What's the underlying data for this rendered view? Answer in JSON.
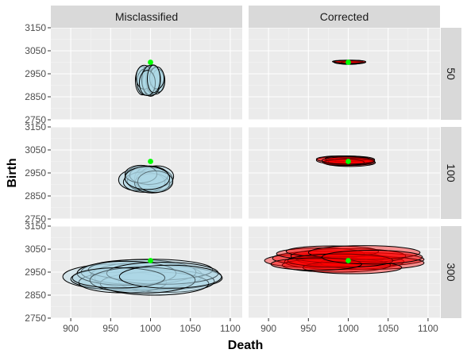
{
  "chart_data": {
    "type": "scatter",
    "subtype": "faceted-ellipse-plot",
    "xlabel": "Death",
    "ylabel": "Birth",
    "xlim": [
      875,
      1115
    ],
    "ylim": [
      2750,
      3150
    ],
    "x_ticks": [
      900,
      950,
      1000,
      1050,
      1100
    ],
    "y_ticks": [
      2750,
      2850,
      2950,
      3050,
      3150
    ],
    "column_strips": [
      "Misclassified",
      "Corrected"
    ],
    "row_strips": [
      "50",
      "100",
      "300"
    ],
    "grid": true,
    "legend": "none",
    "true_value": {
      "x": 1000,
      "y": 3000
    },
    "colors": {
      "panel_bg": "#ebebeb",
      "grid_major": "#ffffff",
      "strip_bg": "#d9d9d9",
      "misclassified_fill": "#add8e6",
      "corrected_fill": "#ff0000",
      "point": "#00ff00",
      "outline": "#000000"
    },
    "panels": [
      {
        "column": "Misclassified",
        "row": "50",
        "fill_opacity": 0.55,
        "ellipses": [
          {
            "cx": 990,
            "cy": 2920,
            "rx": 9,
            "ry": 62
          },
          {
            "cx": 994,
            "cy": 2915,
            "rx": 11,
            "ry": 58
          },
          {
            "cx": 997,
            "cy": 2930,
            "rx": 8,
            "ry": 55
          },
          {
            "cx": 1000,
            "cy": 2912,
            "rx": 10,
            "ry": 60
          },
          {
            "cx": 1003,
            "cy": 2925,
            "rx": 9,
            "ry": 64
          },
          {
            "cx": 1006,
            "cy": 2918,
            "rx": 11,
            "ry": 57
          },
          {
            "cx": 1010,
            "cy": 2920,
            "rx": 8,
            "ry": 50
          },
          {
            "cx": 992,
            "cy": 2935,
            "rx": 10,
            "ry": 52
          },
          {
            "cx": 1001,
            "cy": 2922,
            "rx": 12,
            "ry": 66
          },
          {
            "cx": 1008,
            "cy": 2932,
            "rx": 9,
            "ry": 48
          },
          {
            "cx": 996,
            "cy": 2910,
            "rx": 10,
            "ry": 55
          },
          {
            "cx": 1004,
            "cy": 2928,
            "rx": 8,
            "ry": 60
          }
        ]
      },
      {
        "column": "Corrected",
        "row": "50",
        "fill_opacity": 0.5,
        "ellipses": [
          {
            "cx": 1000,
            "cy": 3000,
            "rx": 18,
            "ry": 8
          },
          {
            "cx": 1003,
            "cy": 2999,
            "rx": 16,
            "ry": 7
          },
          {
            "cx": 998,
            "cy": 3002,
            "rx": 15,
            "ry": 6
          },
          {
            "cx": 1005,
            "cy": 3001,
            "rx": 17,
            "ry": 8
          },
          {
            "cx": 1001,
            "cy": 2998,
            "rx": 14,
            "ry": 7
          },
          {
            "cx": 999,
            "cy": 3003,
            "rx": 19,
            "ry": 6
          },
          {
            "cx": 1004,
            "cy": 3000,
            "rx": 13,
            "ry": 5
          },
          {
            "cx": 1002,
            "cy": 3002,
            "rx": 20,
            "ry": 7
          }
        ]
      },
      {
        "column": "Misclassified",
        "row": "100",
        "fill_opacity": 0.5,
        "ellipses": [
          {
            "cx": 985,
            "cy": 2920,
            "rx": 25,
            "ry": 48
          },
          {
            "cx": 990,
            "cy": 2930,
            "rx": 22,
            "ry": 52
          },
          {
            "cx": 995,
            "cy": 2915,
            "rx": 24,
            "ry": 45
          },
          {
            "cx": 1000,
            "cy": 2925,
            "rx": 20,
            "ry": 55
          },
          {
            "cx": 1005,
            "cy": 2920,
            "rx": 23,
            "ry": 50
          },
          {
            "cx": 1008,
            "cy": 2935,
            "rx": 21,
            "ry": 46
          },
          {
            "cx": 992,
            "cy": 2910,
            "rx": 26,
            "ry": 44
          },
          {
            "cx": 1002,
            "cy": 2905,
            "rx": 22,
            "ry": 42
          },
          {
            "cx": 998,
            "cy": 2940,
            "rx": 24,
            "ry": 40
          },
          {
            "cx": 988,
            "cy": 2945,
            "rx": 20,
            "ry": 38
          },
          {
            "cx": 1006,
            "cy": 2912,
            "rx": 22,
            "ry": 47
          },
          {
            "cx": 996,
            "cy": 2928,
            "rx": 28,
            "ry": 50
          }
        ]
      },
      {
        "column": "Corrected",
        "row": "100",
        "fill_opacity": 0.45,
        "ellipses": [
          {
            "cx": 995,
            "cy": 3005,
            "rx": 35,
            "ry": 18
          },
          {
            "cx": 1000,
            "cy": 3000,
            "rx": 30,
            "ry": 16
          },
          {
            "cx": 1005,
            "cy": 3008,
            "rx": 28,
            "ry": 15
          },
          {
            "cx": 990,
            "cy": 3010,
            "rx": 30,
            "ry": 14
          },
          {
            "cx": 1002,
            "cy": 2995,
            "rx": 32,
            "ry": 17
          },
          {
            "cx": 1008,
            "cy": 3002,
            "rx": 25,
            "ry": 13
          },
          {
            "cx": 998,
            "cy": 3012,
            "rx": 27,
            "ry": 12
          },
          {
            "cx": 1004,
            "cy": 2998,
            "rx": 29,
            "ry": 15
          },
          {
            "cx": 994,
            "cy": 2996,
            "rx": 26,
            "ry": 14
          },
          {
            "cx": 1000,
            "cy": 3004,
            "rx": 33,
            "ry": 16
          }
        ]
      },
      {
        "column": "Misclassified",
        "row": "300",
        "fill_opacity": 0.4,
        "ellipses": [
          {
            "cx": 955,
            "cy": 2930,
            "rx": 65,
            "ry": 55
          },
          {
            "cx": 975,
            "cy": 2920,
            "rx": 75,
            "ry": 50
          },
          {
            "cx": 995,
            "cy": 2935,
            "rx": 70,
            "ry": 58
          },
          {
            "cx": 1010,
            "cy": 2925,
            "rx": 80,
            "ry": 52
          },
          {
            "cx": 1020,
            "cy": 2910,
            "rx": 60,
            "ry": 48
          },
          {
            "cx": 965,
            "cy": 2905,
            "rx": 55,
            "ry": 45
          },
          {
            "cx": 985,
            "cy": 2950,
            "rx": 72,
            "ry": 54
          },
          {
            "cx": 1005,
            "cy": 2900,
            "rx": 68,
            "ry": 50
          },
          {
            "cx": 1000,
            "cy": 2960,
            "rx": 78,
            "ry": 46
          },
          {
            "cx": 970,
            "cy": 2945,
            "rx": 62,
            "ry": 52
          },
          {
            "cx": 1015,
            "cy": 2945,
            "rx": 70,
            "ry": 48
          },
          {
            "cx": 990,
            "cy": 2915,
            "rx": 66,
            "ry": 56
          },
          {
            "cx": 960,
            "cy": 2925,
            "rx": 58,
            "ry": 44
          },
          {
            "cx": 1025,
            "cy": 2930,
            "rx": 64,
            "ry": 50
          }
        ]
      },
      {
        "column": "Corrected",
        "row": "300",
        "fill_opacity": 0.4,
        "ellipses": [
          {
            "cx": 955,
            "cy": 3000,
            "rx": 60,
            "ry": 30
          },
          {
            "cx": 975,
            "cy": 3010,
            "rx": 70,
            "ry": 32
          },
          {
            "cx": 995,
            "cy": 2995,
            "rx": 75,
            "ry": 34
          },
          {
            "cx": 1015,
            "cy": 3005,
            "rx": 80,
            "ry": 30
          },
          {
            "cx": 1030,
            "cy": 2990,
            "rx": 65,
            "ry": 28
          },
          {
            "cx": 965,
            "cy": 3030,
            "rx": 55,
            "ry": 25
          },
          {
            "cx": 985,
            "cy": 2980,
            "rx": 68,
            "ry": 30
          },
          {
            "cx": 1000,
            "cy": 3020,
            "rx": 72,
            "ry": 32
          },
          {
            "cx": 1005,
            "cy": 2970,
            "rx": 62,
            "ry": 27
          },
          {
            "cx": 980,
            "cy": 3040,
            "rx": 58,
            "ry": 24
          },
          {
            "cx": 1020,
            "cy": 3035,
            "rx": 70,
            "ry": 30
          },
          {
            "cx": 990,
            "cy": 3000,
            "rx": 66,
            "ry": 29
          },
          {
            "cx": 960,
            "cy": 2985,
            "rx": 57,
            "ry": 27
          },
          {
            "cx": 1030,
            "cy": 3015,
            "rx": 63,
            "ry": 30
          }
        ]
      }
    ]
  }
}
